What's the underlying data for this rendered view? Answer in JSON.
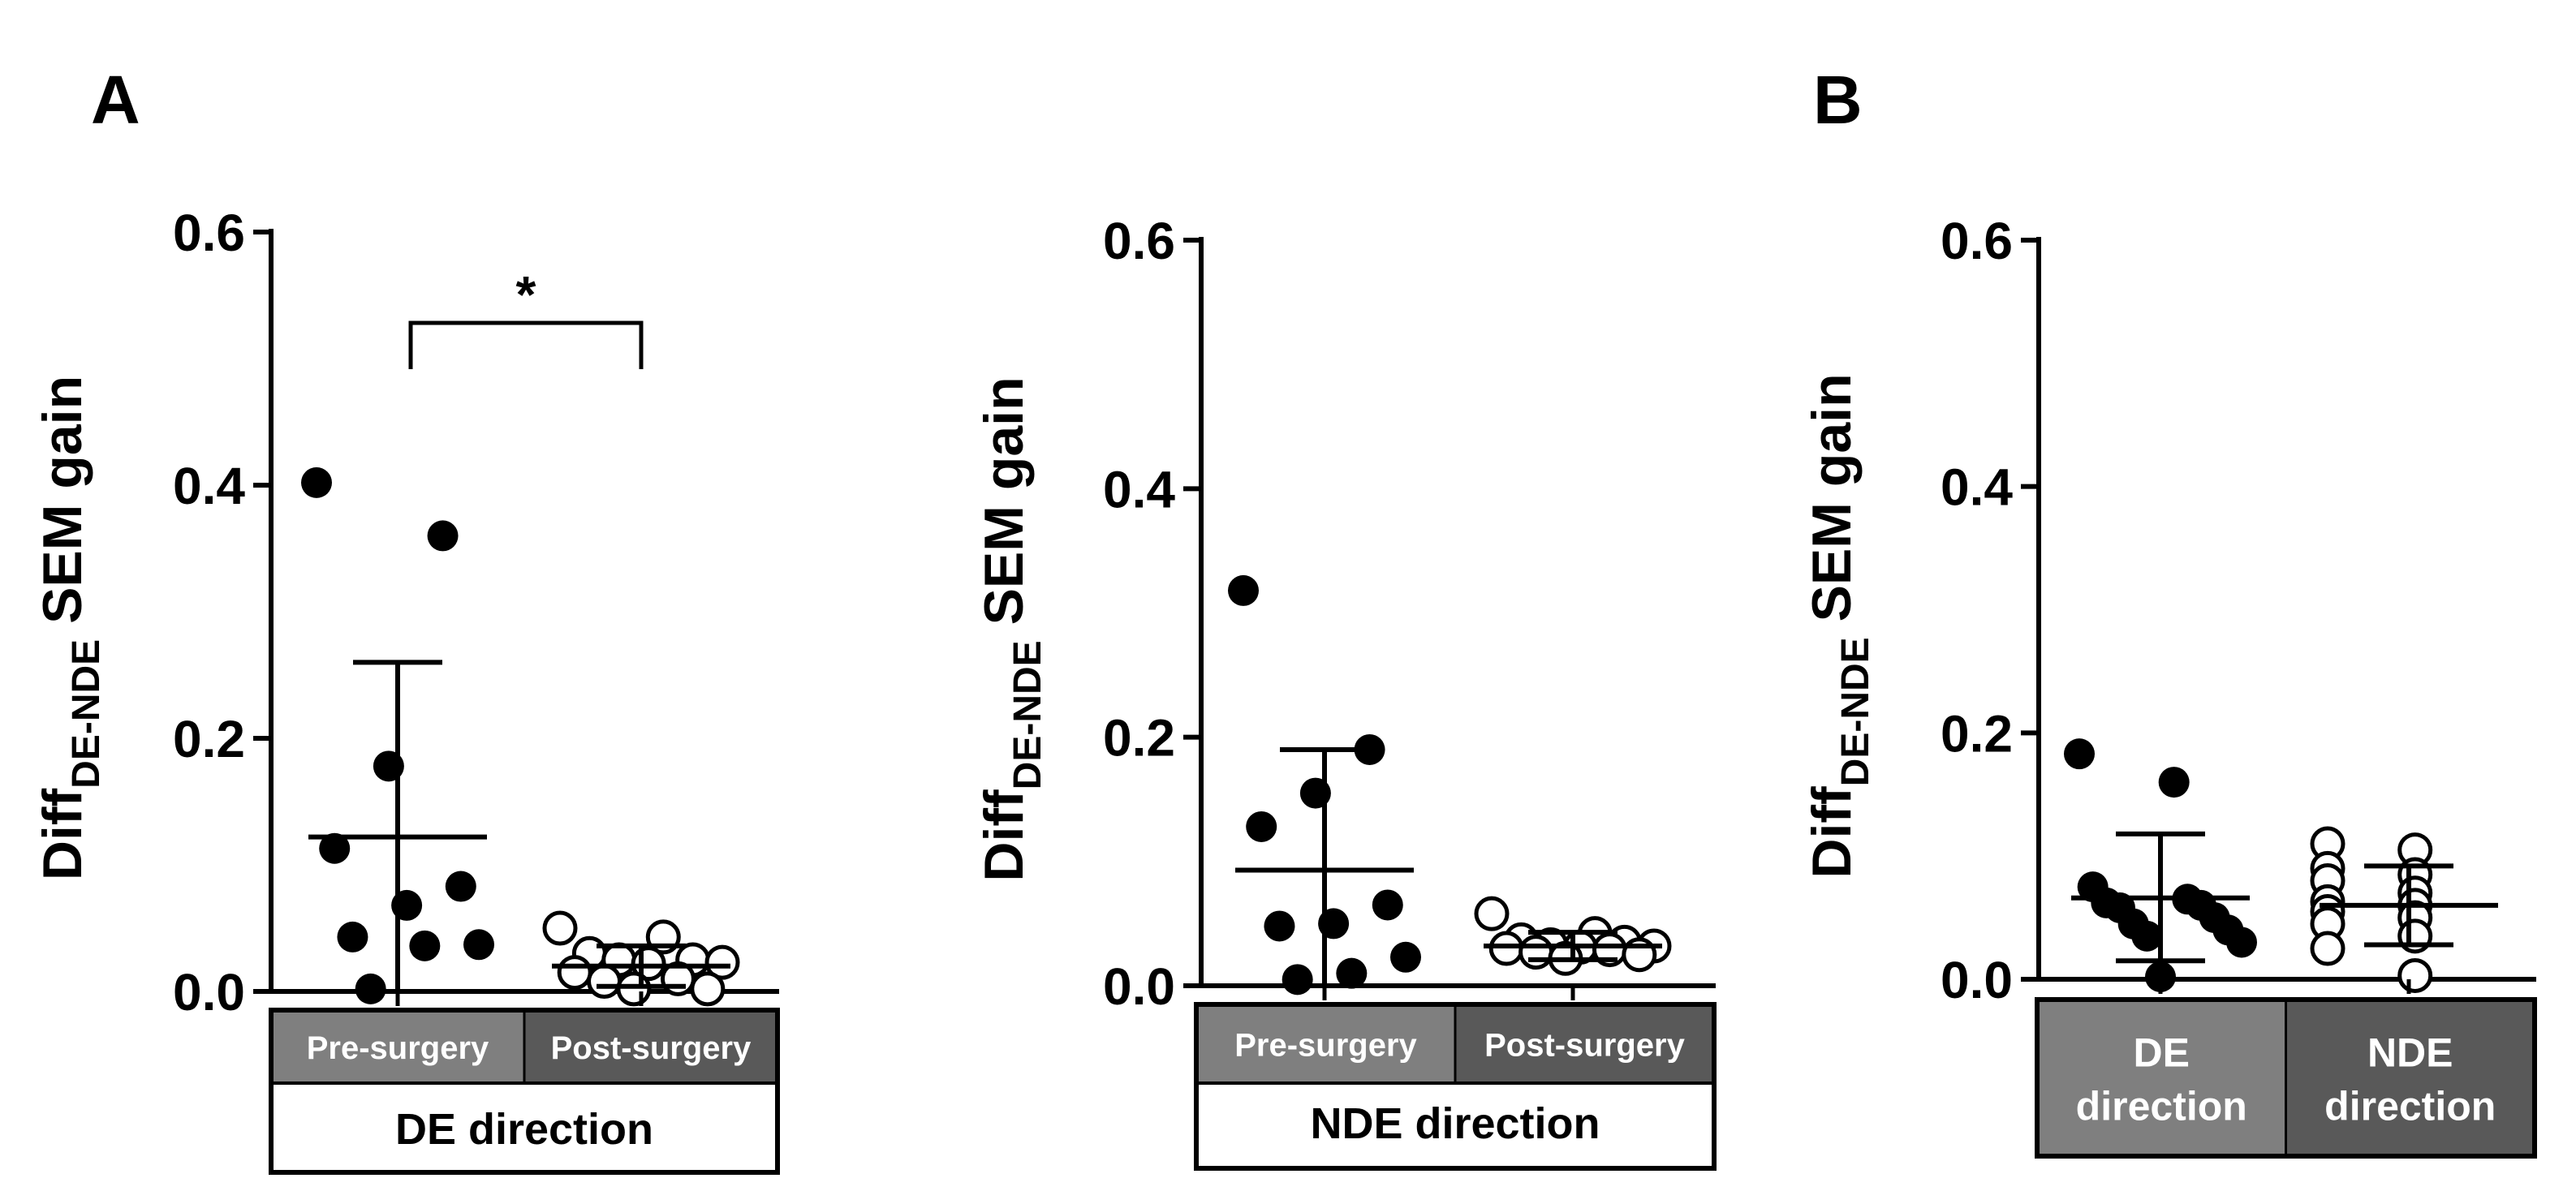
{
  "panel_letters": {
    "a": "A",
    "b": "B"
  },
  "colors": {
    "axis": "#000000",
    "marker_filled": "#000000",
    "marker_open_fill": "#ffffff",
    "category_light": "#7f7f7f",
    "category_dark": "#595959"
  },
  "chart_data": [
    {
      "id": "A1",
      "type": "scatter",
      "title": "",
      "ylabel_main": "Diff",
      "ylabel_sub": "DE-NDE",
      "ylabel_rest": " SEM gain",
      "ylim": [
        0,
        0.6
      ],
      "yticks": [
        0,
        0.2,
        0.4,
        0.6
      ],
      "ytick_labels": [
        "0.0",
        "0.2",
        "0.4",
        "0.6"
      ],
      "categories": [
        "Pre-surgery",
        "Post-surgery"
      ],
      "direction_label": "DE direction",
      "significance": {
        "label": "*",
        "between": [
          "Pre-surgery",
          "Post-surgery"
        ]
      },
      "series": [
        {
          "name": "Pre-surgery",
          "marker": "filled",
          "mean": 0.122,
          "sd_upper": 0.26,
          "sd_lower": 0.0,
          "values": [
            0.402,
            0.36,
            0.178,
            0.113,
            0.083,
            0.068,
            0.043,
            0.037,
            0.036,
            0.002
          ]
        },
        {
          "name": "Post-surgery",
          "marker": "open",
          "mean": 0.02,
          "sd_upper": 0.036,
          "sd_lower": 0.004,
          "values": [
            0.05,
            0.043,
            0.03,
            0.025,
            0.025,
            0.023,
            0.022,
            0.015,
            0.01,
            0.008,
            0.002,
            0.002
          ]
        }
      ]
    },
    {
      "id": "A2",
      "type": "scatter",
      "title": "",
      "ylabel_main": "Diff",
      "ylabel_sub": "DE-NDE",
      "ylabel_rest": " SEM gain",
      "ylim": [
        0,
        0.6
      ],
      "yticks": [
        0,
        0.2,
        0.4,
        0.6
      ],
      "ytick_labels": [
        "0.0",
        "0.2",
        "0.4",
        "0.6"
      ],
      "categories": [
        "Pre-surgery",
        "Post-surgery"
      ],
      "direction_label": "NDE direction",
      "series": [
        {
          "name": "Pre-surgery",
          "marker": "filled",
          "mean": 0.093,
          "sd_upper": 0.19,
          "sd_lower": 0.0,
          "values": [
            0.318,
            0.19,
            0.155,
            0.128,
            0.065,
            0.05,
            0.048,
            0.023,
            0.01,
            0.005
          ]
        },
        {
          "name": "Post-surgery",
          "marker": "open",
          "mean": 0.032,
          "sd_upper": 0.043,
          "sd_lower": 0.021,
          "values": [
            0.058,
            0.042,
            0.037,
            0.035,
            0.033,
            0.032,
            0.031,
            0.03,
            0.029,
            0.027,
            0.025,
            0.022
          ]
        }
      ]
    },
    {
      "id": "B",
      "type": "scatter",
      "title": "",
      "ylabel_main": "Diff",
      "ylabel_sub": "DE-NDE",
      "ylabel_rest": " SEM gain",
      "ylim": [
        0,
        0.6
      ],
      "yticks": [
        0,
        0.2,
        0.4,
        0.6
      ],
      "ytick_labels": [
        "0.0",
        "0.2",
        "0.4",
        "0.6"
      ],
      "categories": [
        "DE direction",
        "NDE direction"
      ],
      "category_lines": [
        [
          "DE",
          "direction"
        ],
        [
          "NDE",
          "direction"
        ]
      ],
      "series": [
        {
          "name": "DE direction",
          "marker": "filled",
          "mean": 0.066,
          "sd_upper": 0.118,
          "sd_lower": 0.015,
          "values": [
            0.183,
            0.16,
            0.075,
            0.065,
            0.062,
            0.06,
            0.058,
            0.05,
            0.045,
            0.04,
            0.035,
            0.03,
            0.002
          ]
        },
        {
          "name": "NDE direction",
          "marker": "open",
          "mean": 0.06,
          "sd_upper": 0.092,
          "sd_lower": 0.028,
          "values": [
            0.11,
            0.105,
            0.09,
            0.085,
            0.08,
            0.07,
            0.063,
            0.06,
            0.055,
            0.05,
            0.045,
            0.035,
            0.025,
            0.003
          ]
        }
      ]
    }
  ]
}
